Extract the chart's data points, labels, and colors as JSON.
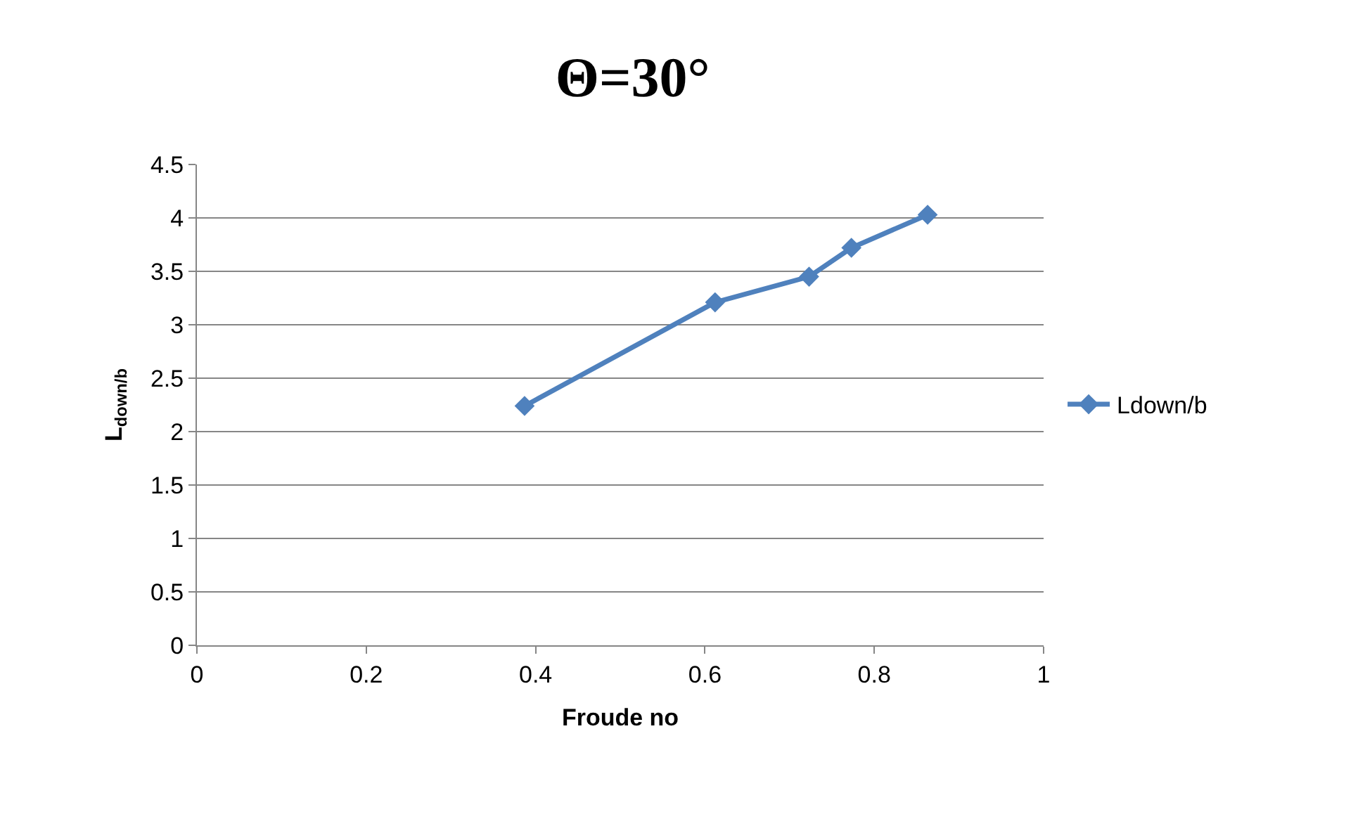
{
  "chart_data": {
    "type": "line",
    "title": "Θ=30°",
    "xlabel": "Froude no",
    "ylabel": "L$_{down/b}$",
    "x": [
      0.387,
      0.612,
      0.723,
      0.773,
      0.863
    ],
    "series": [
      {
        "name": "Ldown/b",
        "color": "#4f81bd",
        "values": [
          2.24,
          3.21,
          3.45,
          3.72,
          4.03
        ]
      }
    ],
    "xlim": [
      0,
      1
    ],
    "xticks": [
      0,
      0.2,
      0.4,
      0.6,
      0.8,
      1
    ],
    "ylim": [
      0,
      4.5
    ],
    "yticks": [
      0,
      0.5,
      1,
      1.5,
      2,
      2.5,
      3,
      3.5,
      4,
      4.5
    ],
    "grid": "y",
    "legend": "right",
    "marker": "diamond",
    "line_style": "solid"
  }
}
